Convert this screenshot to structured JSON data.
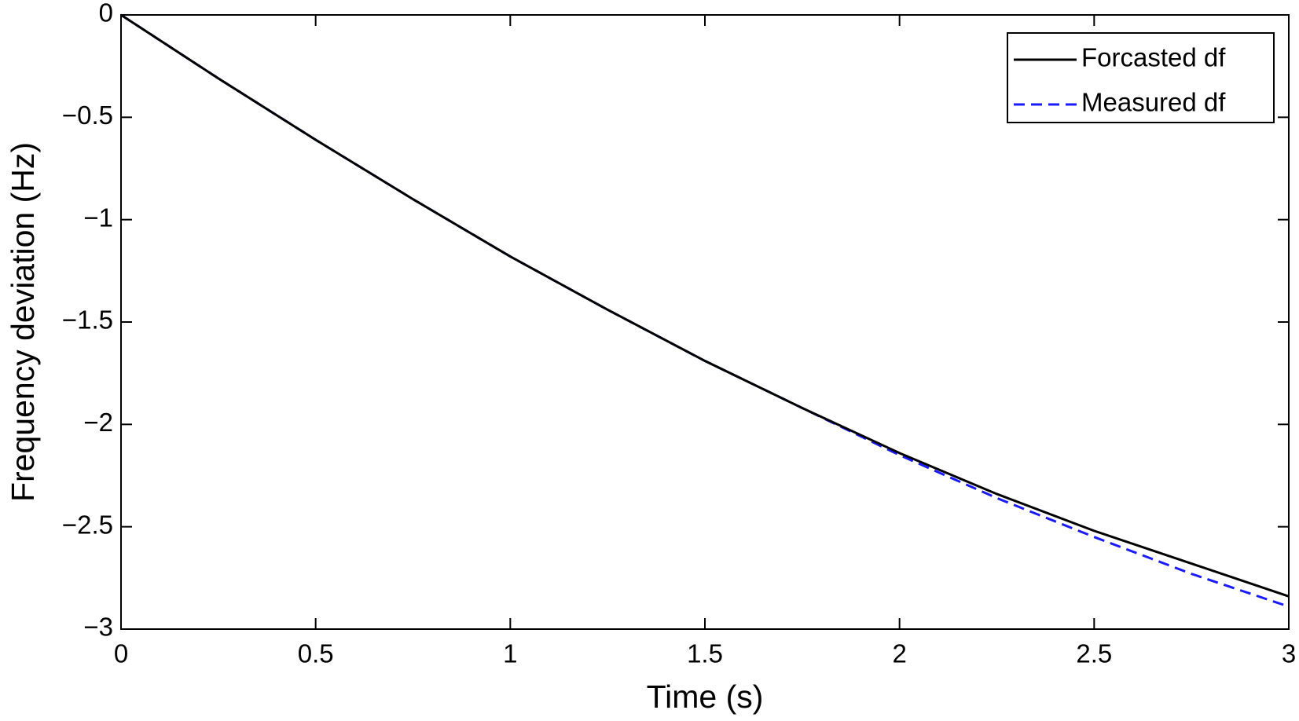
{
  "chart_data": {
    "type": "line",
    "xlabel": "Time (s)",
    "ylabel": "Frequency deviation (Hz)",
    "x": [
      0,
      0.25,
      0.5,
      0.75,
      1,
      1.25,
      1.5,
      1.75,
      2,
      2.25,
      2.5,
      2.75,
      3
    ],
    "series": [
      {
        "name": "Forcasted df",
        "color": "#000000",
        "linestyle": "solid",
        "values": [
          0,
          -0.31,
          -0.61,
          -0.9,
          -1.18,
          -1.44,
          -1.69,
          -1.92,
          -2.14,
          -2.34,
          -2.52,
          -2.68,
          -2.84
        ]
      },
      {
        "name": "Measured df",
        "color": "#1a1aff",
        "linestyle": "dashed",
        "values": [
          0,
          -0.31,
          -0.61,
          -0.9,
          -1.18,
          -1.44,
          -1.69,
          -1.92,
          -2.15,
          -2.36,
          -2.55,
          -2.73,
          -2.89
        ]
      }
    ],
    "xlim": [
      0,
      3
    ],
    "ylim": [
      -3,
      0
    ],
    "xticks": [
      0,
      0.5,
      1,
      1.5,
      2,
      2.5,
      3
    ],
    "yticks": [
      {
        "value": -3,
        "label": "−3"
      },
      {
        "value": -2.5,
        "label": "−2.5"
      },
      {
        "value": -2,
        "label": "−2"
      },
      {
        "value": -1.5,
        "label": "−1.5"
      },
      {
        "value": -1,
        "label": "−1"
      },
      {
        "value": -0.5,
        "label": "−0.5"
      },
      0
    ],
    "grid": false,
    "legend": "upper right"
  }
}
